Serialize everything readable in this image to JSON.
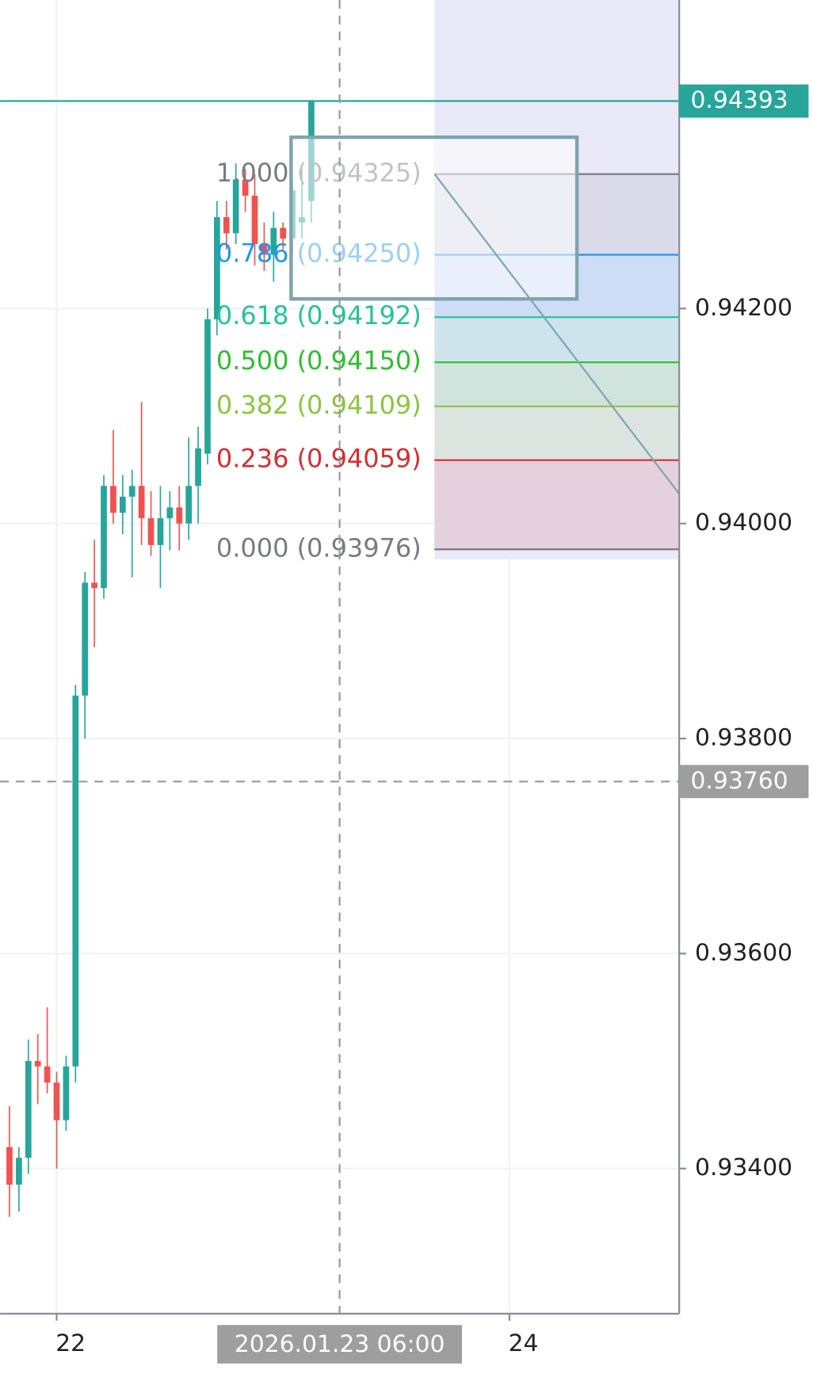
{
  "chart_data": {
    "type": "candlestick",
    "x": [
      "2026-01-21 19:00",
      "2026-01-21 20:00",
      "2026-01-21 21:00",
      "2026-01-21 22:00",
      "2026-01-21 23:00",
      "2026-01-22 00:00",
      "2026-01-22 01:00",
      "2026-01-22 02:00",
      "2026-01-22 03:00",
      "2026-01-22 04:00",
      "2026-01-22 05:00",
      "2026-01-22 06:00",
      "2026-01-22 07:00",
      "2026-01-22 08:00",
      "2026-01-22 09:00",
      "2026-01-22 10:00",
      "2026-01-22 11:00",
      "2026-01-22 12:00",
      "2026-01-22 13:00",
      "2026-01-22 14:00",
      "2026-01-22 15:00",
      "2026-01-22 16:00",
      "2026-01-22 17:00",
      "2026-01-22 18:00",
      "2026-01-22 19:00",
      "2026-01-22 20:00",
      "2026-01-22 21:00",
      "2026-01-22 22:00",
      "2026-01-22 23:00",
      "2026-01-23 00:00",
      "2026-01-23 01:00",
      "2026-01-23 02:00",
      "2026-01-23 03:00"
    ],
    "open": [
      0.9342,
      0.93385,
      0.9341,
      0.935,
      0.93495,
      0.9348,
      0.93445,
      0.93495,
      0.9384,
      0.93945,
      0.9394,
      0.94035,
      0.9401,
      0.94025,
      0.94035,
      0.94005,
      0.9398,
      0.94005,
      0.94015,
      0.94,
      0.94035,
      0.94065,
      0.9419,
      0.94285,
      0.9427,
      0.9432,
      0.94305,
      0.9426,
      0.9425,
      0.94275,
      0.94265,
      0.9428,
      0.943
    ],
    "high": [
      0.93458,
      0.9342,
      0.9352,
      0.93525,
      0.9355,
      0.9349,
      0.93505,
      0.9385,
      0.93955,
      0.93985,
      0.94045,
      0.94087,
      0.94045,
      0.9405,
      0.94113,
      0.9403,
      0.94035,
      0.9403,
      0.94035,
      0.9408,
      0.9409,
      0.942,
      0.943,
      0.943,
      0.94335,
      0.9433,
      0.94325,
      0.9428,
      0.9429,
      0.9428,
      0.9432,
      0.9433,
      0.94393
    ],
    "low": [
      0.93355,
      0.9336,
      0.93395,
      0.9346,
      0.9347,
      0.934,
      0.93435,
      0.9348,
      0.938,
      0.93885,
      0.9393,
      0.94,
      0.9399,
      0.9395,
      0.9398,
      0.9397,
      0.9394,
      0.93975,
      0.93975,
      0.93985,
      0.94,
      0.94055,
      0.94175,
      0.94255,
      0.9426,
      0.9429,
      0.9424,
      0.94235,
      0.94225,
      0.94255,
      0.9425,
      0.94265,
      0.9428
    ],
    "close": [
      0.93385,
      0.9341,
      0.935,
      0.93495,
      0.9348,
      0.93445,
      0.93495,
      0.9384,
      0.93945,
      0.9394,
      0.94035,
      0.9401,
      0.94025,
      0.94035,
      0.94005,
      0.9398,
      0.94005,
      0.94015,
      0.94,
      0.94035,
      0.9407,
      0.9419,
      0.94285,
      0.9427,
      0.9432,
      0.94305,
      0.9426,
      0.9425,
      0.94275,
      0.94265,
      0.9431,
      0.94285,
      0.94393
    ],
    "up_color": "#26a69a",
    "down_color": "#ef5350",
    "xlim": [
      "2026-01-21 18:00",
      "2026-01-24 18:00"
    ],
    "xticks": [
      {
        "value": "2026-01-22 00:00",
        "label": "22"
      },
      {
        "value": "2026-01-24 00:00",
        "label": "24"
      }
    ],
    "ylim": [
      0.93265,
      0.94487
    ],
    "yticks": [
      {
        "value": 0.934,
        "label": "0.93400"
      },
      {
        "value": 0.936,
        "label": "0.93600"
      },
      {
        "value": 0.938,
        "label": "0.93800"
      },
      {
        "value": 0.94,
        "label": "0.94000"
      },
      {
        "value": 0.942,
        "label": "0.94200"
      }
    ],
    "grid": true,
    "last_price": 0.94393,
    "crosshair": {
      "x": {
        "value": "2026-01-23 06:00",
        "label": "2026.01.23 06:00"
      },
      "y": {
        "value": 0.9376,
        "label": "0.93760"
      }
    },
    "fib_levels": [
      {
        "label": "1.000 (0.94325)",
        "price": 0.94325,
        "color": "#787b86"
      },
      {
        "label": "0.786 (0.94250)",
        "price": 0.9425,
        "color": "#2196f3"
      },
      {
        "label": "0.618 (0.94192)",
        "price": 0.94192,
        "color": "#22c49a"
      },
      {
        "label": "0.500 (0.94150)",
        "price": 0.9415,
        "color": "#2cc02c"
      },
      {
        "label": "0.382 (0.94109)",
        "price": 0.94109,
        "color": "#8cc63a"
      },
      {
        "label": "0.236 (0.94059)",
        "price": 0.94059,
        "color": "#d32f2f"
      },
      {
        "label": "0.000 (0.93976)",
        "price": 0.93976,
        "color": "#787b86"
      }
    ]
  }
}
